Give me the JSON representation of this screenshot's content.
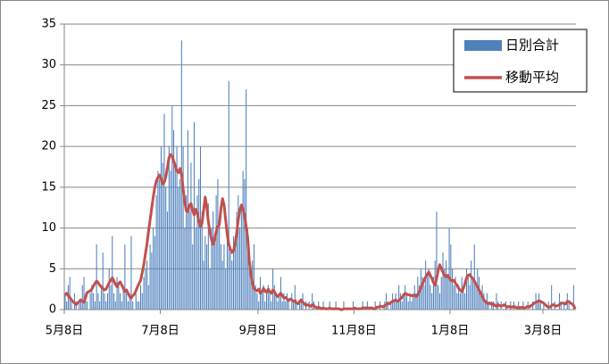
{
  "chart_data": {
    "type": "combo",
    "categories": [
      "5月8日",
      null,
      null,
      null,
      null,
      null,
      null,
      null,
      null,
      null,
      null,
      null,
      null,
      null,
      null,
      null,
      null,
      null,
      null,
      null,
      null,
      null,
      null,
      null,
      null,
      null,
      null,
      null,
      null,
      null,
      null,
      null,
      null,
      null,
      null,
      null,
      null,
      null,
      null,
      null,
      null,
      null,
      null,
      null,
      null,
      null,
      null,
      null,
      null,
      null,
      null,
      null,
      null,
      null,
      null,
      null,
      null,
      null,
      null,
      null,
      null,
      "7月8日",
      null,
      null,
      null,
      null,
      null,
      null,
      null,
      null,
      null,
      null,
      null,
      null,
      null,
      null,
      null,
      null,
      null,
      null,
      null,
      null,
      null,
      null,
      null,
      null,
      null,
      null,
      null,
      null,
      null,
      null,
      null,
      null,
      null,
      null,
      null,
      null,
      null,
      null,
      null,
      null,
      null,
      null,
      null,
      null,
      null,
      null,
      null,
      null,
      null,
      null,
      null,
      null,
      null,
      null,
      null,
      null,
      null,
      null,
      null,
      null,
      null,
      "9月8日",
      null,
      null,
      null,
      null,
      null,
      null,
      null,
      null,
      null,
      null,
      null,
      null,
      null,
      null,
      null,
      null,
      null,
      null,
      null,
      null,
      null,
      null,
      null,
      null,
      null,
      null,
      null,
      null,
      null,
      null,
      null,
      null,
      null,
      null,
      null,
      null,
      null,
      null,
      null,
      null,
      null,
      null,
      null,
      null,
      null,
      null,
      null,
      null,
      null,
      null,
      null,
      null,
      null,
      null,
      null,
      null,
      null,
      null,
      null,
      null,
      "11月8日",
      null,
      null,
      null,
      null,
      null,
      null,
      null,
      null,
      null,
      null,
      null,
      null,
      null,
      null,
      null,
      null,
      null,
      null,
      null,
      null,
      null,
      null,
      null,
      null,
      null,
      null,
      null,
      null,
      null,
      null,
      null,
      null,
      null,
      null,
      null,
      null,
      null,
      null,
      null,
      null,
      null,
      null,
      null,
      null,
      null,
      null,
      null,
      null,
      null,
      null,
      null,
      null,
      null,
      null,
      null,
      null,
      null,
      null,
      null,
      null,
      "1月8日",
      null,
      null,
      null,
      null,
      null,
      null,
      null,
      null,
      null,
      null,
      null,
      null,
      null,
      null,
      null,
      null,
      null,
      null,
      null,
      null,
      null,
      null,
      null,
      null,
      null,
      null,
      null,
      null,
      null,
      null,
      null,
      null,
      null,
      null,
      null,
      null,
      null,
      null,
      null,
      null,
      null,
      null,
      null,
      null,
      null,
      null,
      null,
      null,
      null,
      null,
      null,
      null,
      null,
      null,
      null,
      null,
      null,
      null,
      "3月8日",
      null,
      null,
      null,
      null,
      null,
      null,
      null,
      null,
      null,
      null,
      null,
      null,
      null,
      null,
      null,
      null,
      null,
      null,
      null,
      null
    ],
    "series": [
      {
        "name": "日別合計",
        "type": "bar",
        "color": "#4f81bd",
        "values": [
          2,
          1,
          3,
          4,
          1,
          0,
          2,
          1,
          0,
          1,
          1,
          3,
          4,
          2,
          1,
          0,
          2,
          3,
          2,
          1,
          8,
          2,
          1,
          3,
          7,
          2,
          1,
          2,
          5,
          3,
          9,
          2,
          1,
          4,
          3,
          2,
          1,
          3,
          8,
          2,
          1,
          2,
          9,
          1,
          0,
          2,
          1,
          1,
          3,
          2,
          4,
          5,
          6,
          3,
          8,
          7,
          10,
          9,
          14,
          17,
          16,
          20,
          18,
          24,
          15,
          12,
          20,
          17,
          25,
          22,
          18,
          20,
          15,
          16,
          33,
          20,
          10,
          14,
          22,
          12,
          18,
          8,
          23,
          10,
          14,
          16,
          20,
          12,
          6,
          9,
          8,
          13,
          5,
          10,
          12,
          9,
          14,
          16,
          11,
          8,
          6,
          8,
          5,
          10,
          28,
          7,
          6,
          9,
          8,
          12,
          14,
          10,
          13,
          17,
          16,
          27,
          10,
          5,
          4,
          6,
          8,
          3,
          2,
          1,
          4,
          2,
          3,
          1,
          2,
          3,
          2,
          1,
          5,
          3,
          2,
          1,
          2,
          4,
          1,
          2,
          1,
          2,
          1,
          0,
          2,
          1,
          3,
          1,
          0,
          1,
          1,
          2,
          0,
          1,
          0,
          1,
          0,
          2,
          1,
          0,
          0,
          1,
          0,
          0,
          1,
          0,
          0,
          0,
          1,
          0,
          0,
          0,
          1,
          0,
          0,
          0,
          0,
          1,
          0,
          0,
          0,
          0,
          0,
          1,
          0,
          0,
          0,
          0,
          0,
          1,
          0,
          0,
          1,
          0,
          0,
          0,
          0,
          1,
          0,
          0,
          1,
          0,
          0,
          1,
          2,
          1,
          0,
          1,
          2,
          1,
          2,
          1,
          3,
          2,
          1,
          2,
          3,
          2,
          1,
          2,
          1,
          2,
          3,
          2,
          4,
          3,
          5,
          4,
          3,
          6,
          4,
          5,
          3,
          2,
          4,
          6,
          12,
          3,
          2,
          4,
          7,
          5,
          6,
          4,
          10,
          8,
          5,
          3,
          4,
          2,
          3,
          2,
          4,
          3,
          2,
          5,
          4,
          3,
          6,
          4,
          8,
          3,
          5,
          4,
          2,
          3,
          2,
          1,
          2,
          1,
          0,
          1,
          1,
          0,
          2,
          1,
          0,
          1,
          0,
          0,
          1,
          0,
          0,
          1,
          0,
          1,
          0,
          0,
          1,
          0,
          0,
          1,
          0,
          0,
          1,
          0,
          0,
          1,
          0,
          2,
          1,
          2,
          1,
          0,
          1,
          0,
          0,
          1,
          0,
          3,
          0,
          1,
          0,
          0,
          2,
          1,
          0,
          1,
          0,
          2,
          1,
          0,
          0,
          3,
          0
        ]
      },
      {
        "name": "移動平均",
        "type": "line",
        "color": "#c0504d",
        "values": [
          1.8,
          2.0,
          1.7,
          1.5,
          1.2,
          1.0,
          0.8,
          0.6,
          0.8,
          1.0,
          1.2,
          1.0,
          0.9,
          1.5,
          2.1,
          2.2,
          2.3,
          2.5,
          2.9,
          3.2,
          3.5,
          3.3,
          3.0,
          2.8,
          2.6,
          2.4,
          2.5,
          2.9,
          3.3,
          3.6,
          3.9,
          3.5,
          3.1,
          2.8,
          3.2,
          3.4,
          3.0,
          2.6,
          2.2,
          2.4,
          2.0,
          1.6,
          1.4,
          1.7,
          1.9,
          2.3,
          2.8,
          3.2,
          3.6,
          4.5,
          5.5,
          6.8,
          8.0,
          9.6,
          11.0,
          12.4,
          13.8,
          15.0,
          15.8,
          16.2,
          16.5,
          16.0,
          15.4,
          15.6,
          16.3,
          17.4,
          18.6,
          19.0,
          18.8,
          18.2,
          17.6,
          17.0,
          16.8,
          17.3,
          16.5,
          14.8,
          13.2,
          12.1,
          12.0,
          12.8,
          13.0,
          12.2,
          11.6,
          12.3,
          11.8,
          10.8,
          10.2,
          10.6,
          12.2,
          13.8,
          12.6,
          10.8,
          9.5,
          8.6,
          8.0,
          8.6,
          9.6,
          10.2,
          10.4,
          12.4,
          13.6,
          12.8,
          11.0,
          9.2,
          8.0,
          7.4,
          7.0,
          7.2,
          8.0,
          9.4,
          11.0,
          12.2,
          12.8,
          12.3,
          11.6,
          10.2,
          8.8,
          6.0,
          4.4,
          3.2,
          2.6,
          2.4,
          2.3,
          2.5,
          2.0,
          2.2,
          2.6,
          2.3,
          2.1,
          2.5,
          2.2,
          2.0,
          2.4,
          2.2,
          1.8,
          1.6,
          1.8,
          2.0,
          1.7,
          1.4,
          1.5,
          1.3,
          1.1,
          1.3,
          1.2,
          1.0,
          1.1,
          0.8,
          0.7,
          1.0,
          1.2,
          0.9,
          0.7,
          0.5,
          0.6,
          0.5,
          0.4,
          0.6,
          0.5,
          0.3,
          0.2,
          0.3,
          0.2,
          0.1,
          0.2,
          0.1,
          0.1,
          0.1,
          0.2,
          0.1,
          0.1,
          0.1,
          0.1,
          0.1,
          0.1,
          0.0,
          0.0,
          0.1,
          0.1,
          0.1,
          0.1,
          0.1,
          0.1,
          0.1,
          0.2,
          0.1,
          0.1,
          0.1,
          0.1,
          0.2,
          0.2,
          0.2,
          0.2,
          0.2,
          0.2,
          0.2,
          0.1,
          0.1,
          0.3,
          0.3,
          0.4,
          0.4,
          0.3,
          0.5,
          0.6,
          0.8,
          0.7,
          0.9,
          1.0,
          1.1,
          1.2,
          1.0,
          1.1,
          1.3,
          1.5,
          1.8,
          2.0,
          1.9,
          1.8,
          1.8,
          1.7,
          1.7,
          1.8,
          1.6,
          1.8,
          2.2,
          2.7,
          3.1,
          3.6,
          4.0,
          4.3,
          4.6,
          4.2,
          3.8,
          3.3,
          3.0,
          3.8,
          4.8,
          5.5,
          5.0,
          4.6,
          4.2,
          4.0,
          4.2,
          3.9,
          3.6,
          3.5,
          3.6,
          3.2,
          3.0,
          2.6,
          2.4,
          2.2,
          2.6,
          3.2,
          3.9,
          4.2,
          4.3,
          4.0,
          3.8,
          3.5,
          3.1,
          2.8,
          2.4,
          2.0,
          1.6,
          1.2,
          1.0,
          0.8,
          0.7,
          0.8,
          0.6,
          0.7,
          0.5,
          0.4,
          0.6,
          0.5,
          0.4,
          0.5,
          0.6,
          0.4,
          0.3,
          0.4,
          0.3,
          0.3,
          0.4,
          0.3,
          0.2,
          0.3,
          0.2,
          0.3,
          0.2,
          0.2,
          0.3,
          0.4,
          0.3,
          0.5,
          0.6,
          0.8,
          0.9,
          1.0,
          1.1,
          1.0,
          0.9,
          0.8,
          0.6,
          0.4,
          0.3,
          0.3,
          0.5,
          0.6,
          0.5,
          0.4,
          0.5,
          0.6,
          0.8,
          0.8,
          0.7,
          0.7,
          1.0,
          1.0,
          0.8,
          0.7,
          0.5,
          0.1
        ]
      }
    ],
    "ylim": [
      0,
      35
    ],
    "yticks": [
      0,
      5,
      10,
      15,
      20,
      25,
      30,
      35
    ],
    "grid": true,
    "legend": "upper-right"
  }
}
